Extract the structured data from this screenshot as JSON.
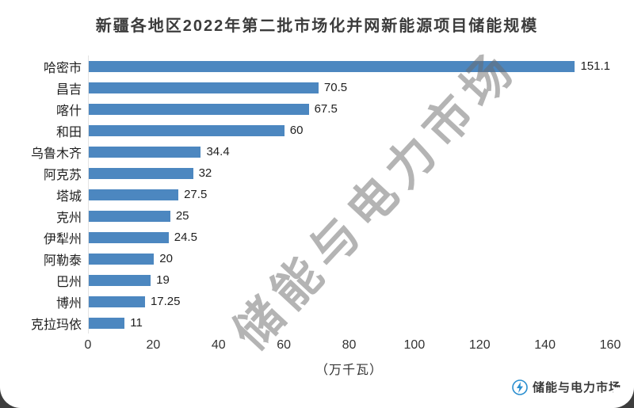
{
  "title": "新疆各地区2022年第二批市场化并网新能源项目储能规模",
  "watermark": "储能与电力市场",
  "footer": {
    "logo_text": "储能与电力市场"
  },
  "chart_data": {
    "type": "bar",
    "orientation": "horizontal",
    "title": "新疆各地区2022年第二批市场化并网新能源项目储能规模",
    "categories": [
      "哈密市",
      "昌吉",
      "喀什",
      "和田",
      "乌鲁木齐",
      "阿克苏",
      "塔城",
      "克州",
      "伊犁州",
      "阿勒泰",
      "巴州",
      "博州",
      "克拉玛依"
    ],
    "values": [
      151.1,
      70.5,
      67.5,
      60,
      34.4,
      32,
      27.5,
      25,
      24.5,
      20,
      19,
      17.25,
      11
    ],
    "value_labels": [
      "151.1",
      "70.5",
      "67.5",
      "60",
      "34.4",
      "32",
      "27.5",
      "25",
      "24.5",
      "20",
      "19",
      "17.25",
      "11"
    ],
    "xlabel": "（万千瓦）",
    "ylabel": "",
    "xlim": [
      0,
      160
    ],
    "x_ticks": [
      0,
      20,
      40,
      60,
      80,
      100,
      120,
      140,
      160
    ],
    "grid": false,
    "legend": "none",
    "bar_color": "#4c87c0"
  }
}
